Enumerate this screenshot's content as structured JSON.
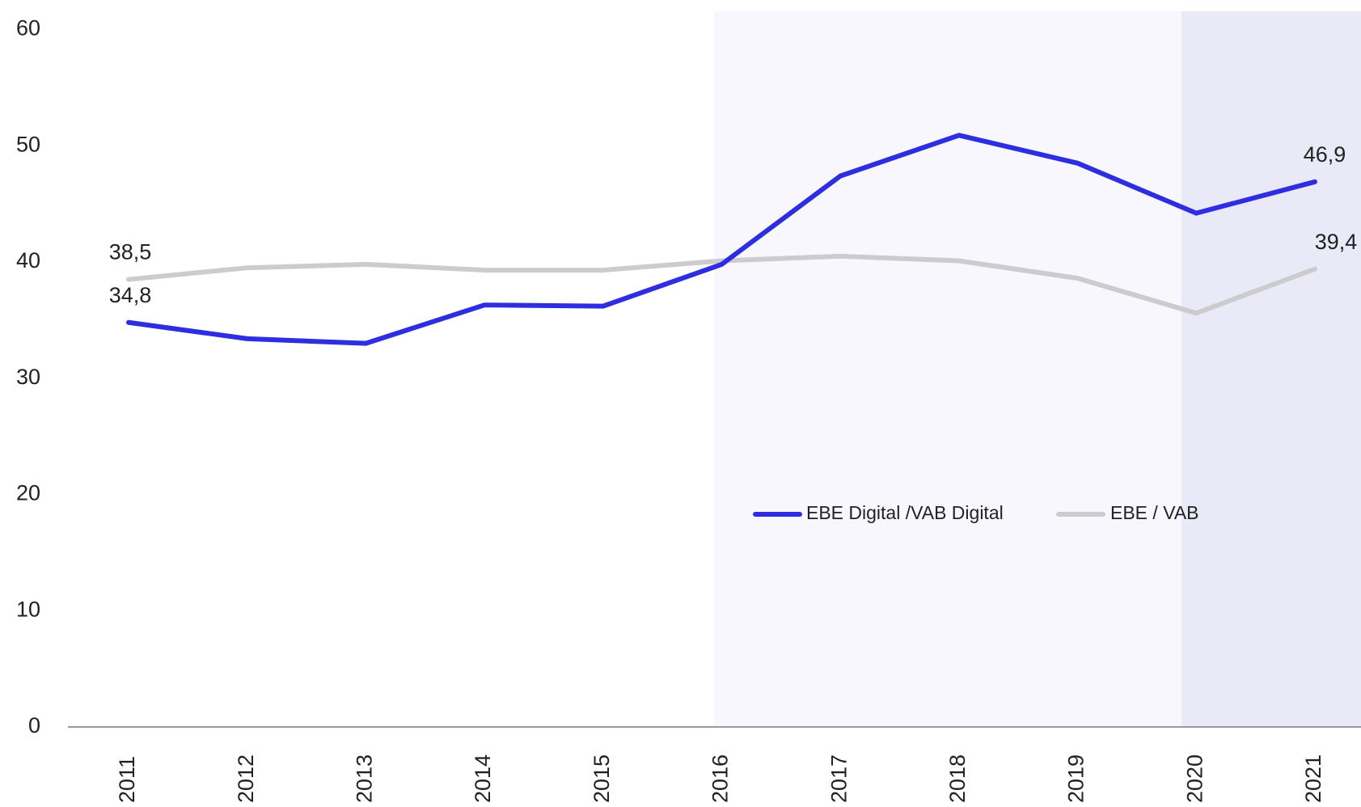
{
  "chart_data": {
    "type": "line",
    "categories": [
      "2011",
      "2012",
      "2013",
      "2014",
      "2015",
      "2016",
      "2017",
      "2018",
      "2019",
      "2020",
      "2021"
    ],
    "series": [
      {
        "name": "EBE Digital /VAB Digital",
        "color": "#2e2ee0",
        "values": [
          34.8,
          33.4,
          33.0,
          36.3,
          36.2,
          39.8,
          47.4,
          50.9,
          48.5,
          44.2,
          46.9
        ],
        "value_labels": [
          "34,8",
          null,
          null,
          null,
          null,
          null,
          null,
          null,
          null,
          null,
          "46,9"
        ]
      },
      {
        "name": "EBE / VAB",
        "color": "#cccccf",
        "values": [
          38.5,
          39.5,
          39.8,
          39.3,
          39.3,
          40.1,
          40.5,
          40.1,
          38.6,
          35.6,
          39.4
        ],
        "value_labels": [
          "38,5",
          null,
          null,
          null,
          null,
          null,
          null,
          null,
          null,
          null,
          "39,4"
        ]
      }
    ],
    "ylim": [
      0,
      60
    ],
    "yticks": [
      0,
      10,
      20,
      30,
      40,
      50,
      60
    ],
    "grid": false
  }
}
